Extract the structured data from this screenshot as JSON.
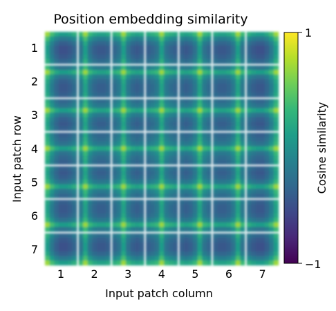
{
  "chart_data": {
    "type": "heatmap",
    "title": "Position embedding similarity",
    "xlabel": "Input patch column",
    "ylabel": "Input patch row",
    "x_ticks": [
      "1",
      "2",
      "3",
      "4",
      "5",
      "6",
      "7"
    ],
    "y_ticks": [
      "1",
      "2",
      "3",
      "4",
      "5",
      "6",
      "7"
    ],
    "grid_rows": 7,
    "grid_cols": 7,
    "colorbar": {
      "label": "Cosine similarity",
      "min": -1,
      "max": 1,
      "min_label": "−1",
      "max_label": "1",
      "colormap": "viridis"
    },
    "colors": {
      "viridis": [
        "#440154",
        "#482878",
        "#3e4989",
        "#31688e",
        "#26828e",
        "#1f9e89",
        "#35b779",
        "#6ece58",
        "#b5de2b",
        "#fde725"
      ]
    },
    "cell_similarity_levels": {
      "note_values": "each cell (row r, column c) is a 7x7 map of cosine similarity of patch (r,c) to every other patch; value = rowProfile[r][i] + colProfile[c][j]",
      "row_profiles": [
        [
          0.35,
          0.05,
          -0.15,
          -0.25,
          -0.25,
          -0.2,
          -0.1
        ],
        [
          0.0,
          0.35,
          0.0,
          -0.15,
          -0.2,
          -0.2,
          -0.15
        ],
        [
          -0.1,
          0.0,
          0.35,
          0.0,
          -0.15,
          -0.2,
          -0.15
        ],
        [
          -0.15,
          -0.1,
          0.0,
          0.35,
          0.0,
          -0.1,
          -0.15
        ],
        [
          -0.15,
          -0.2,
          -0.15,
          0.0,
          0.35,
          0.0,
          -0.1
        ],
        [
          -0.15,
          -0.2,
          -0.2,
          -0.15,
          0.0,
          0.35,
          0.0
        ],
        [
          -0.1,
          -0.2,
          -0.25,
          -0.25,
          -0.15,
          0.05,
          0.35
        ]
      ],
      "col_profiles": [
        [
          0.35,
          0.05,
          -0.15,
          -0.25,
          -0.25,
          -0.2,
          -0.1
        ],
        [
          0.0,
          0.35,
          0.0,
          -0.15,
          -0.2,
          -0.2,
          -0.15
        ],
        [
          -0.1,
          0.0,
          0.35,
          0.0,
          -0.15,
          -0.2,
          -0.15
        ],
        [
          -0.15,
          -0.1,
          0.0,
          0.35,
          0.0,
          -0.1,
          -0.15
        ],
        [
          -0.15,
          -0.2,
          -0.15,
          0.0,
          0.35,
          0.0,
          -0.1
        ],
        [
          -0.15,
          -0.2,
          -0.2,
          -0.15,
          0.0,
          0.35,
          0.0
        ],
        [
          -0.1,
          -0.2,
          -0.25,
          -0.25,
          -0.15,
          0.05,
          0.35
        ]
      ]
    }
  }
}
